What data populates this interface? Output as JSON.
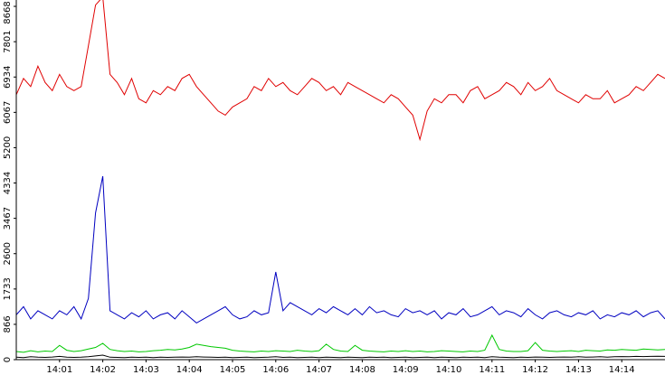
{
  "chart_data": {
    "type": "line",
    "categories": [
      null,
      null,
      null,
      null,
      null,
      null,
      "14:01",
      null,
      null,
      null,
      null,
      null,
      "14:02",
      null,
      null,
      null,
      null,
      null,
      "14:03",
      null,
      null,
      null,
      null,
      null,
      "14:04",
      null,
      null,
      null,
      null,
      null,
      "14:05",
      null,
      null,
      null,
      null,
      null,
      "14:06",
      null,
      null,
      null,
      null,
      null,
      "14:07",
      null,
      null,
      null,
      null,
      null,
      "14:08",
      null,
      null,
      null,
      null,
      null,
      "14:09",
      null,
      null,
      null,
      null,
      null,
      "14:10",
      null,
      null,
      null,
      null,
      null,
      "14:11",
      null,
      null,
      null,
      null,
      null,
      "14:12",
      null,
      null,
      null,
      null,
      null,
      "14:13",
      null,
      null,
      null,
      null,
      null,
      "14:14",
      null,
      null,
      null,
      null,
      null,
      null
    ],
    "series": [
      {
        "name": "red",
        "color": "#e00000",
        "values": [
          6500,
          6900,
          6700,
          7200,
          6800,
          6600,
          7000,
          6700,
          6600,
          6700,
          7700,
          8700,
          8900,
          7000,
          6800,
          6500,
          6900,
          6400,
          6300,
          6600,
          6500,
          6700,
          6600,
          6900,
          7000,
          6700,
          6500,
          6300,
          6100,
          6000,
          6200,
          6300,
          6400,
          6700,
          6600,
          6900,
          6700,
          6800,
          6600,
          6500,
          6700,
          6900,
          6800,
          6600,
          6700,
          6500,
          6800,
          6700,
          6600,
          6500,
          6400,
          6300,
          6500,
          6400,
          6200,
          6000,
          5400,
          6100,
          6400,
          6300,
          6500,
          6500,
          6300,
          6600,
          6700,
          6400,
          6500,
          6600,
          6800,
          6700,
          6500,
          6800,
          6600,
          6700,
          6900,
          6600,
          6500,
          6400,
          6300,
          6500,
          6400,
          6400,
          6600,
          6300,
          6400,
          6500,
          6700,
          6600,
          6800,
          7000,
          6900
        ]
      },
      {
        "name": "blue",
        "color": "#0000c0",
        "values": [
          1100,
          1300,
          1000,
          1200,
          1100,
          1000,
          1200,
          1100,
          1300,
          1000,
          1500,
          3600,
          4500,
          1200,
          1100,
          1000,
          1150,
          1050,
          1200,
          1000,
          1100,
          1150,
          1000,
          1200,
          1050,
          900,
          1000,
          1100,
          1200,
          1300,
          1100,
          1000,
          1050,
          1200,
          1100,
          1150,
          2150,
          1200,
          1400,
          1300,
          1200,
          1100,
          1250,
          1150,
          1300,
          1200,
          1100,
          1250,
          1100,
          1300,
          1150,
          1200,
          1100,
          1050,
          1250,
          1150,
          1200,
          1100,
          1200,
          1000,
          1150,
          1100,
          1250,
          1050,
          1100,
          1200,
          1300,
          1100,
          1200,
          1150,
          1050,
          1250,
          1100,
          1000,
          1150,
          1200,
          1100,
          1050,
          1150,
          1100,
          1200,
          1000,
          1100,
          1050,
          1150,
          1100,
          1200,
          1050,
          1150,
          1200,
          1000
        ]
      },
      {
        "name": "green",
        "color": "#00c800",
        "values": [
          200,
          180,
          220,
          190,
          210,
          200,
          350,
          230,
          200,
          220,
          260,
          300,
          400,
          250,
          220,
          200,
          210,
          190,
          200,
          220,
          230,
          250,
          240,
          260,
          300,
          380,
          350,
          320,
          300,
          280,
          230,
          210,
          200,
          190,
          210,
          200,
          220,
          210,
          200,
          230,
          210,
          200,
          220,
          380,
          250,
          210,
          200,
          350,
          230,
          210,
          200,
          190,
          210,
          200,
          220,
          200,
          210,
          190,
          200,
          220,
          210,
          200,
          190,
          210,
          200,
          230,
          600,
          250,
          210,
          200,
          200,
          220,
          420,
          230,
          210,
          200,
          210,
          220,
          200,
          230,
          220,
          210,
          240,
          230,
          250,
          240,
          230,
          260,
          250,
          240,
          250
        ]
      },
      {
        "name": "black",
        "color": "#000000",
        "values": [
          60,
          50,
          70,
          60,
          55,
          65,
          80,
          60,
          55,
          60,
          70,
          90,
          110,
          60,
          55,
          50,
          60,
          55,
          60,
          50,
          60,
          55,
          60,
          65,
          60,
          70,
          65,
          60,
          55,
          60,
          50,
          55,
          60,
          50,
          55,
          60,
          70,
          55,
          60,
          50,
          55,
          60,
          50,
          60,
          55,
          50,
          60,
          55,
          50,
          60,
          55,
          60,
          50,
          55,
          60,
          50,
          55,
          60,
          50,
          60,
          55,
          50,
          60,
          55,
          60,
          50,
          70,
          60,
          55,
          50,
          60,
          55,
          65,
          60,
          55,
          60,
          65,
          60,
          70,
          60,
          65,
          70,
          60,
          70,
          75,
          70,
          80,
          75,
          80,
          85,
          80
        ]
      }
    ],
    "ylim": [
      0,
      8824
    ],
    "yticks": [
      0,
      866,
      1733,
      2600,
      3467,
      4334,
      5200,
      6067,
      6934,
      7801,
      8668
    ]
  }
}
